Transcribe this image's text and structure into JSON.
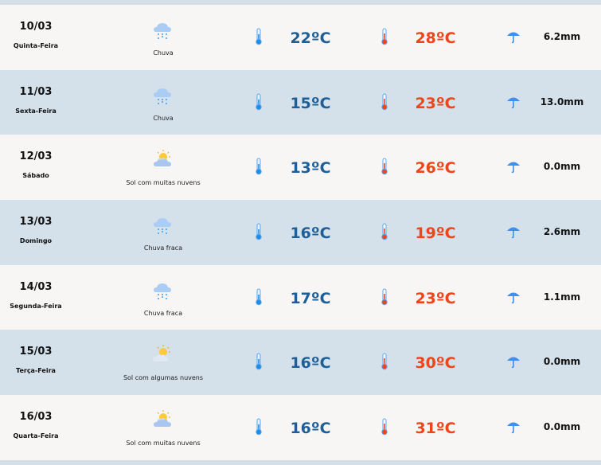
{
  "colors": {
    "min_temp": "#1f5f97",
    "max_temp": "#f0441a",
    "row_light": "#f7f6f4",
    "row_blue": "#d4e0ea"
  },
  "days": [
    {
      "date": "10/03",
      "weekday": "Quinta-Feira",
      "icon": "rain-cloud-icon",
      "condition": "Chuva",
      "min": "22ºC",
      "max": "28ºC",
      "rain": "6.2mm"
    },
    {
      "date": "11/03",
      "weekday": "Sexta-Feira",
      "icon": "rain-cloud-icon",
      "condition": "Chuva",
      "min": "15ºC",
      "max": "23ºC",
      "rain": "13.0mm"
    },
    {
      "date": "12/03",
      "weekday": "Sábado",
      "icon": "sun-many-clouds-icon",
      "condition": "Sol com muitas nuvens",
      "min": "13ºC",
      "max": "26ºC",
      "rain": "0.0mm"
    },
    {
      "date": "13/03",
      "weekday": "Domingo",
      "icon": "light-rain-cloud-icon",
      "condition": "Chuva fraca",
      "min": "16ºC",
      "max": "19ºC",
      "rain": "2.6mm"
    },
    {
      "date": "14/03",
      "weekday": "Segunda-Feira",
      "icon": "light-rain-cloud-icon",
      "condition": "Chuva fraca",
      "min": "17ºC",
      "max": "23ºC",
      "rain": "1.1mm"
    },
    {
      "date": "15/03",
      "weekday": "Terça-Feira",
      "icon": "sun-some-clouds-icon",
      "condition": "Sol com algumas nuvens",
      "min": "16ºC",
      "max": "30ºC",
      "rain": "0.0mm"
    },
    {
      "date": "16/03",
      "weekday": "Quarta-Feira",
      "icon": "sun-many-clouds-icon",
      "condition": "Sol com muitas nuvens",
      "min": "16ºC",
      "max": "31ºC",
      "rain": "0.0mm"
    }
  ]
}
